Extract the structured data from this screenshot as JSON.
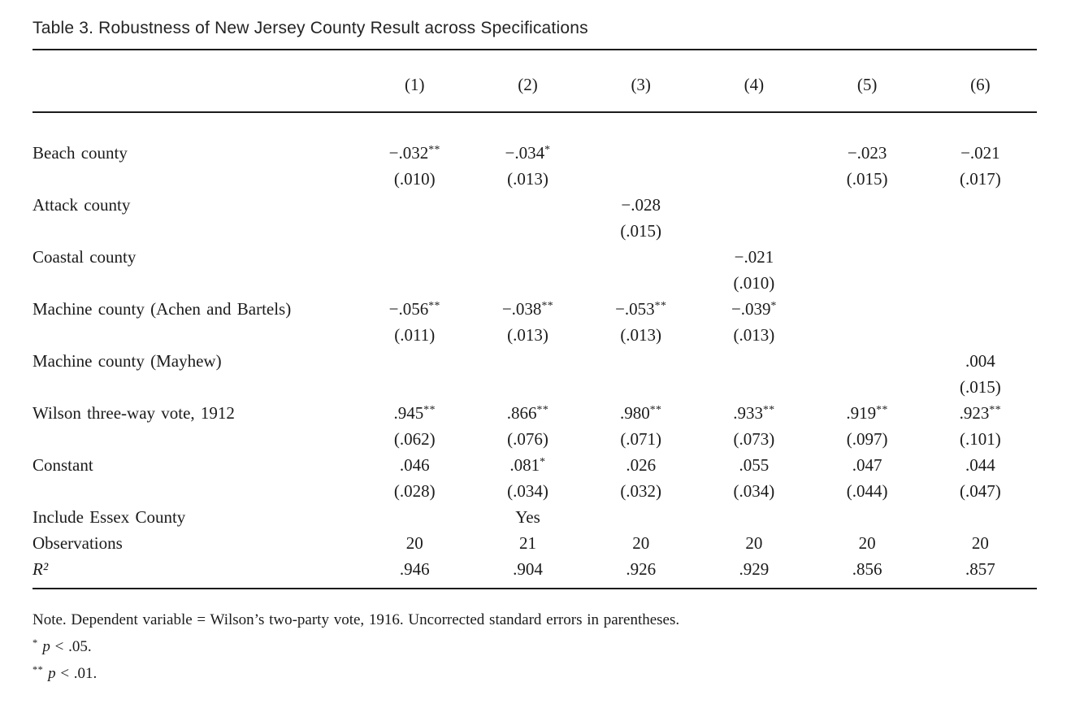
{
  "title": "Table 3. Robustness of New Jersey County Result across Specifications",
  "table": {
    "column_headers": [
      "(1)",
      "(2)",
      "(3)",
      "(4)",
      "(5)",
      "(6)"
    ],
    "rows": [
      {
        "label": "Beach county",
        "cells": [
          "−.032**",
          "−.034*",
          "",
          "",
          "−.023",
          "−.021"
        ]
      },
      {
        "label": "",
        "cells": [
          "(.010)",
          "(.013)",
          "",
          "",
          "(.015)",
          "(.017)"
        ]
      },
      {
        "label": "Attack county",
        "cells": [
          "",
          "",
          "−.028",
          "",
          "",
          ""
        ]
      },
      {
        "label": "",
        "cells": [
          "",
          "",
          "(.015)",
          "",
          "",
          ""
        ]
      },
      {
        "label": "Coastal county",
        "cells": [
          "",
          "",
          "",
          "−.021",
          "",
          ""
        ]
      },
      {
        "label": "",
        "cells": [
          "",
          "",
          "",
          "(.010)",
          "",
          ""
        ]
      },
      {
        "label": "Machine county (Achen and Bartels)",
        "cells": [
          "−.056**",
          "−.038**",
          "−.053**",
          "−.039*",
          "",
          ""
        ]
      },
      {
        "label": "",
        "cells": [
          "(.011)",
          "(.013)",
          "(.013)",
          "(.013)",
          "",
          ""
        ]
      },
      {
        "label": "Machine county (Mayhew)",
        "cells": [
          "",
          "",
          "",
          "",
          "",
          ".004"
        ]
      },
      {
        "label": "",
        "cells": [
          "",
          "",
          "",
          "",
          "",
          "(.015)"
        ]
      },
      {
        "label": "Wilson three-way vote, 1912",
        "cells": [
          ".945**",
          ".866**",
          ".980**",
          ".933**",
          ".919**",
          ".923**"
        ]
      },
      {
        "label": "",
        "cells": [
          "(.062)",
          "(.076)",
          "(.071)",
          "(.073)",
          "(.097)",
          "(.101)"
        ]
      },
      {
        "label": "Constant",
        "cells": [
          ".046",
          ".081*",
          ".026",
          ".055",
          ".047",
          ".044"
        ]
      },
      {
        "label": "",
        "cells": [
          "(.028)",
          "(.034)",
          "(.032)",
          "(.034)",
          "(.044)",
          "(.047)"
        ]
      },
      {
        "label": "Include Essex County",
        "cells": [
          "",
          "Yes",
          "",
          "",
          "",
          ""
        ]
      },
      {
        "label": "Observations",
        "cells": [
          "20",
          "21",
          "20",
          "20",
          "20",
          "20"
        ]
      },
      {
        "label": "R²",
        "math": true,
        "cells": [
          ".946",
          ".904",
          ".926",
          ".929",
          ".856",
          ".857"
        ]
      }
    ]
  },
  "notes": {
    "main": "Note. Dependent variable = Wilson’s two-party vote, 1916. Uncorrected standard errors in parentheses.",
    "sig_levels": [
      {
        "stars": "*",
        "symbol": "p",
        "rest": "< .05."
      },
      {
        "stars": "**",
        "symbol": "p",
        "rest": "< .01."
      }
    ]
  }
}
